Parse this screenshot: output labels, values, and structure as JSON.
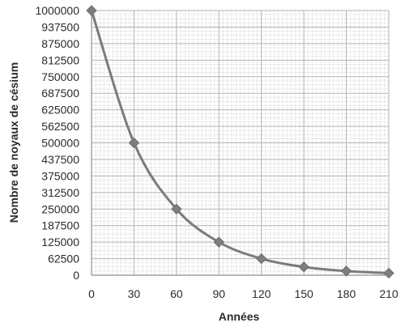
{
  "chart_data": {
    "type": "line",
    "xlabel": "Années",
    "ylabel": "Nombre de noyaux de césium",
    "x": [
      0,
      30,
      60,
      90,
      120,
      150,
      180,
      210
    ],
    "x_ticks": [
      "0",
      "30",
      "60",
      "90",
      "120",
      "150",
      "180",
      "210"
    ],
    "y_ticks": [
      "1000000",
      "937500",
      "875000",
      "812500",
      "750000",
      "687500",
      "625000",
      "562500",
      "500000",
      "437500",
      "375000",
      "312500",
      "250000",
      "187500",
      "125000",
      "62500",
      "0"
    ],
    "series": [
      {
        "values": [
          1000000,
          500000,
          250000,
          125000,
          62500,
          31250,
          15625,
          7812.5
        ]
      }
    ],
    "ylim": [
      0,
      1000000
    ],
    "xlim": [
      0,
      210
    ],
    "grid": true,
    "legend": "none",
    "colors": {
      "line": "#7a7a80",
      "marker": "#7d7d85"
    }
  }
}
